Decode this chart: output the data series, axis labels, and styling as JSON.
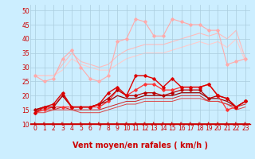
{
  "background_color": "#cceeff",
  "grid_color": "#aaccdd",
  "xlabel": "Vent moyen/en rafales ( km/h )",
  "xlabel_color": "#cc0000",
  "xlabel_fontsize": 7,
  "tick_color": "#cc0000",
  "ylim": [
    10,
    52
  ],
  "xlim": [
    -0.5,
    23.5
  ],
  "yticks": [
    10,
    15,
    20,
    25,
    30,
    35,
    40,
    45,
    50
  ],
  "xticks": [
    0,
    1,
    2,
    3,
    4,
    5,
    6,
    7,
    8,
    9,
    10,
    11,
    12,
    13,
    14,
    15,
    16,
    17,
    18,
    19,
    20,
    21,
    22,
    23
  ],
  "series": [
    {
      "x": [
        0,
        1,
        2,
        3,
        4,
        5,
        6,
        7,
        8,
        9,
        10,
        11,
        12,
        13,
        14,
        15,
        16,
        17,
        18,
        19,
        20,
        21,
        22,
        23
      ],
      "y": [
        27,
        25,
        26,
        33,
        36,
        30,
        26,
        25,
        27,
        39,
        40,
        47,
        46,
        41,
        41,
        47,
        46,
        45,
        45,
        43,
        43,
        31,
        32,
        33
      ],
      "color": "#ffaaaa",
      "linewidth": 0.8,
      "marker": "D",
      "markersize": 1.8,
      "zorder": 2
    },
    {
      "x": [
        0,
        2,
        3,
        4,
        5,
        6,
        7,
        8,
        9,
        10,
        11,
        12,
        13,
        14,
        15,
        16,
        17,
        18,
        19,
        20,
        21,
        22,
        23
      ],
      "y": [
        27,
        27,
        31,
        35,
        32,
        31,
        30,
        31,
        34,
        36,
        37,
        38,
        38,
        38,
        39,
        40,
        41,
        42,
        41,
        42,
        40,
        43,
        33
      ],
      "color": "#ffbbbb",
      "linewidth": 0.8,
      "marker": null,
      "markersize": 0,
      "zorder": 1
    },
    {
      "x": [
        0,
        2,
        3,
        4,
        5,
        6,
        7,
        8,
        9,
        10,
        11,
        12,
        13,
        14,
        15,
        16,
        17,
        18,
        19,
        20,
        21,
        22,
        23
      ],
      "y": [
        27,
        27,
        29,
        33,
        31,
        30,
        29,
        29,
        31,
        33,
        34,
        35,
        35,
        35,
        36,
        37,
        38,
        39,
        38,
        39,
        37,
        40,
        32
      ],
      "color": "#ffcccc",
      "linewidth": 0.8,
      "marker": null,
      "markersize": 0,
      "zorder": 1
    },
    {
      "x": [
        0,
        1,
        2,
        3,
        4,
        5,
        6,
        7,
        8,
        9,
        10,
        11,
        12,
        13,
        14,
        15,
        16,
        17,
        18,
        19,
        20,
        21,
        22,
        23
      ],
      "y": [
        14,
        16,
        17,
        21,
        16,
        16,
        16,
        17,
        21,
        23,
        20,
        27,
        27,
        26,
        23,
        26,
        23,
        23,
        23,
        24,
        20,
        19,
        16,
        18
      ],
      "color": "#dd0000",
      "linewidth": 1.0,
      "marker": "D",
      "markersize": 1.8,
      "zorder": 5
    },
    {
      "x": [
        0,
        1,
        2,
        3,
        4,
        5,
        6,
        7,
        8,
        9,
        10,
        11,
        12,
        13,
        14,
        15,
        16,
        17,
        18,
        19,
        20,
        21,
        22,
        23
      ],
      "y": [
        14,
        15,
        16,
        16,
        16,
        16,
        16,
        16,
        18,
        22,
        20,
        22,
        24,
        24,
        22,
        22,
        23,
        23,
        23,
        24,
        20,
        15,
        16,
        18
      ],
      "color": "#ff3333",
      "linewidth": 0.9,
      "marker": "D",
      "markersize": 1.8,
      "zorder": 4
    },
    {
      "x": [
        0,
        1,
        2,
        3,
        4,
        5,
        6,
        7,
        8,
        9,
        10,
        11,
        12,
        13,
        14,
        15,
        16,
        17,
        18,
        19,
        20,
        21,
        22,
        23
      ],
      "y": [
        15,
        16,
        16,
        20,
        16,
        16,
        16,
        17,
        19,
        22,
        20,
        20,
        21,
        21,
        20,
        21,
        22,
        22,
        22,
        19,
        20,
        19,
        16,
        18
      ],
      "color": "#bb0000",
      "linewidth": 0.9,
      "marker": "D",
      "markersize": 1.8,
      "zorder": 4
    },
    {
      "x": [
        0,
        1,
        2,
        3,
        4,
        5,
        6,
        7,
        8,
        9,
        10,
        11,
        12,
        13,
        14,
        15,
        16,
        17,
        18,
        19,
        20,
        21,
        22,
        23
      ],
      "y": [
        15,
        15,
        15,
        16,
        15,
        15,
        15,
        15,
        16,
        17,
        18,
        18,
        19,
        19,
        19,
        19,
        20,
        20,
        20,
        18,
        18,
        17,
        16,
        17
      ],
      "color": "#cc2222",
      "linewidth": 0.7,
      "marker": null,
      "markersize": 0,
      "zorder": 3
    },
    {
      "x": [
        0,
        1,
        2,
        3,
        4,
        5,
        6,
        7,
        8,
        9,
        10,
        11,
        12,
        13,
        14,
        15,
        16,
        17,
        18,
        19,
        20,
        21,
        22,
        23
      ],
      "y": [
        14,
        14,
        15,
        15,
        15,
        14,
        14,
        14,
        15,
        16,
        17,
        17,
        18,
        18,
        18,
        18,
        19,
        19,
        19,
        18,
        18,
        17,
        15,
        16
      ],
      "color": "#dd4444",
      "linewidth": 0.7,
      "marker": null,
      "markersize": 0,
      "zorder": 3
    },
    {
      "x": [
        0,
        1,
        2,
        3,
        4,
        5,
        6,
        7,
        8,
        9,
        10,
        11,
        12,
        13,
        14,
        15,
        16,
        17,
        18,
        19,
        20,
        21,
        22,
        23
      ],
      "y": [
        15,
        16,
        16,
        20,
        16,
        16,
        16,
        17,
        18,
        20,
        19,
        19,
        20,
        20,
        20,
        20,
        21,
        21,
        21,
        19,
        19,
        18,
        16,
        18
      ],
      "color": "#990000",
      "linewidth": 0.9,
      "marker": null,
      "markersize": 0,
      "zorder": 3
    }
  ]
}
